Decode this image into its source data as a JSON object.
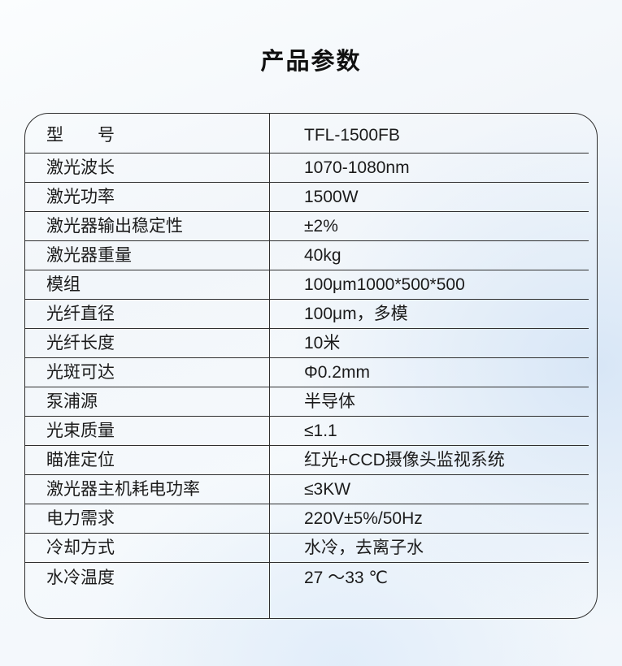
{
  "page": {
    "title": "产品参数"
  },
  "colors": {
    "title_text": "#111111",
    "cell_text": "#1b1b1b",
    "table_border": "#2f2f2f",
    "background_tint": "#d6e5f6"
  },
  "table": {
    "rows": [
      {
        "label": "型　　号",
        "value": "TFL-1500FB"
      },
      {
        "label": "激光波长",
        "value": "1070-1080nm"
      },
      {
        "label": "激光功率",
        "value": "1500W"
      },
      {
        "label": "激光器输出稳定性",
        "value": "±2%"
      },
      {
        "label": "激光器重量",
        "value": "40kg"
      },
      {
        "label": "模组",
        "value": "100μm1000*500*500"
      },
      {
        "label": "光纤直径",
        "value": "100μm，多模"
      },
      {
        "label": "光纤长度",
        "value": "10米"
      },
      {
        "label": "光斑可达",
        "value": "Φ0.2mm"
      },
      {
        "label": "泵浦源",
        "value": "半导体"
      },
      {
        "label": "光束质量",
        "value": "≤1.1"
      },
      {
        "label": "瞄准定位",
        "value": "红光+CCD摄像头监视系统"
      },
      {
        "label": "激光器主机耗电功率",
        "value": "≤3KW"
      },
      {
        "label": "电力需求",
        "value": "220V±5%/50Hz"
      },
      {
        "label": "冷却方式",
        "value": "水冷，去离子水"
      },
      {
        "label": "水冷温度",
        "value": "27 ～33 ℃"
      }
    ]
  }
}
